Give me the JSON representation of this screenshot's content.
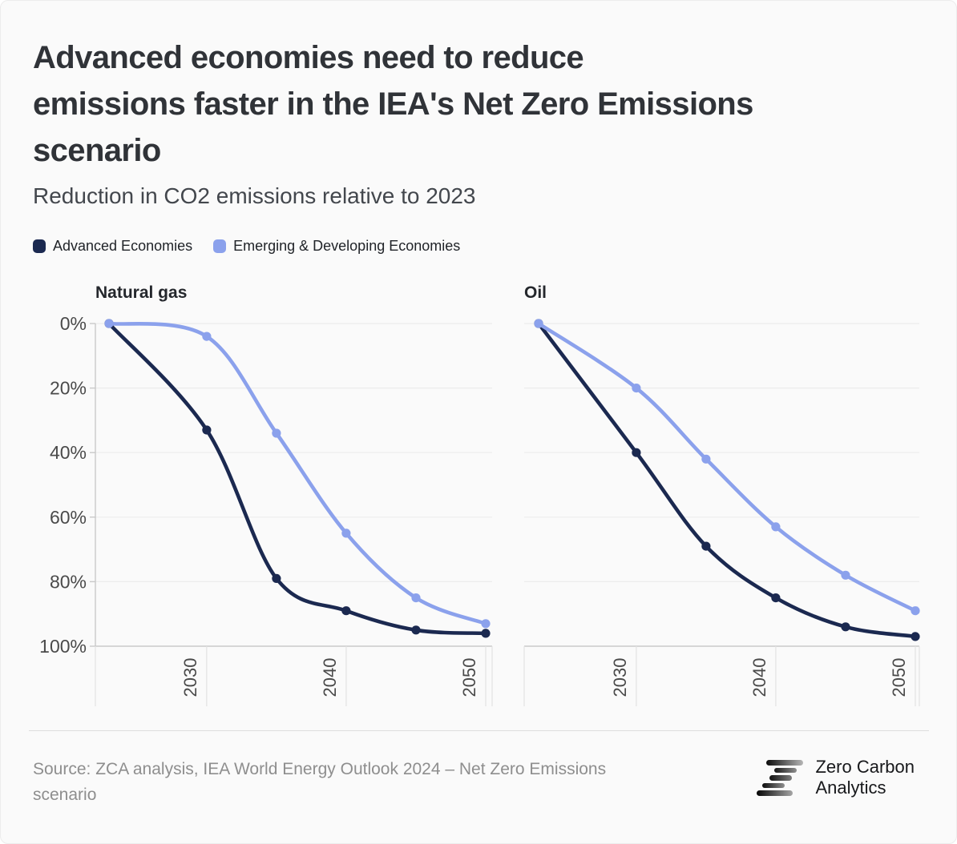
{
  "title": "Advanced economies need to reduce emissions faster in the IEA's Net Zero Emissions scenario",
  "title_lines": [
    "Advanced economies need to reduce",
    "emissions faster in the IEA's Net Zero Emissions",
    "scenario"
  ],
  "subtitle": "Reduction in CO2 emissions relative to 2023",
  "legend": [
    {
      "label": "Advanced Economies",
      "color": "#1b2950"
    },
    {
      "label": "Emerging & Developing Economies",
      "color": "#8ba1ec"
    }
  ],
  "colors": {
    "background": "#fafafa",
    "advanced_series": "#1b2950",
    "emerging_series": "#8ba1ec",
    "gridline": "#ececec",
    "axis_line": "#c9c9c9",
    "tick_line": "#e2e2e2",
    "axis_text": "#4a4a4a",
    "panel_title_text": "#24272c"
  },
  "chart_data": [
    {
      "type": "line",
      "title": "Natural gas",
      "x": [
        2023,
        2030,
        2035,
        2040,
        2045,
        2050
      ],
      "x_ticks": [
        2030,
        2040,
        2050
      ],
      "y_ticks": [
        "0%",
        "20%",
        "40%",
        "60%",
        "80%",
        "100%"
      ],
      "ylim": [
        0,
        100
      ],
      "y_axis_inverted": true,
      "grid": true,
      "unit": "% reduction vs 2023",
      "show_y_tick_labels": true,
      "series": [
        {
          "name": "Advanced Economies",
          "color": "#1b2950",
          "values": [
            0,
            33,
            79,
            89,
            95,
            96
          ]
        },
        {
          "name": "Emerging & Developing Economies",
          "color": "#8ba1ec",
          "values": [
            0,
            4,
            34,
            65,
            85,
            93
          ]
        }
      ]
    },
    {
      "type": "line",
      "title": "Oil",
      "x": [
        2023,
        2030,
        2035,
        2040,
        2045,
        2050
      ],
      "x_ticks": [
        2030,
        2040,
        2050
      ],
      "y_ticks": [
        "0%",
        "20%",
        "40%",
        "60%",
        "80%",
        "100%"
      ],
      "ylim": [
        0,
        100
      ],
      "y_axis_inverted": true,
      "grid": true,
      "unit": "% reduction vs 2023",
      "show_y_tick_labels": false,
      "series": [
        {
          "name": "Advanced Economies",
          "color": "#1b2950",
          "values": [
            0,
            40,
            69,
            85,
            94,
            97
          ]
        },
        {
          "name": "Emerging & Developing Economies",
          "color": "#8ba1ec",
          "values": [
            0,
            20,
            42,
            63,
            78,
            89
          ]
        }
      ]
    }
  ],
  "footer": {
    "source": "Source: ZCA analysis, IEA World Energy Outlook 2024 – Net Zero Emissions scenario",
    "source_lines": [
      "Source: ZCA analysis, IEA World Energy Outlook 2024 – Net Zero Emissions",
      "scenario"
    ],
    "logo_lines": [
      "Zero Carbon",
      "Analytics"
    ]
  }
}
